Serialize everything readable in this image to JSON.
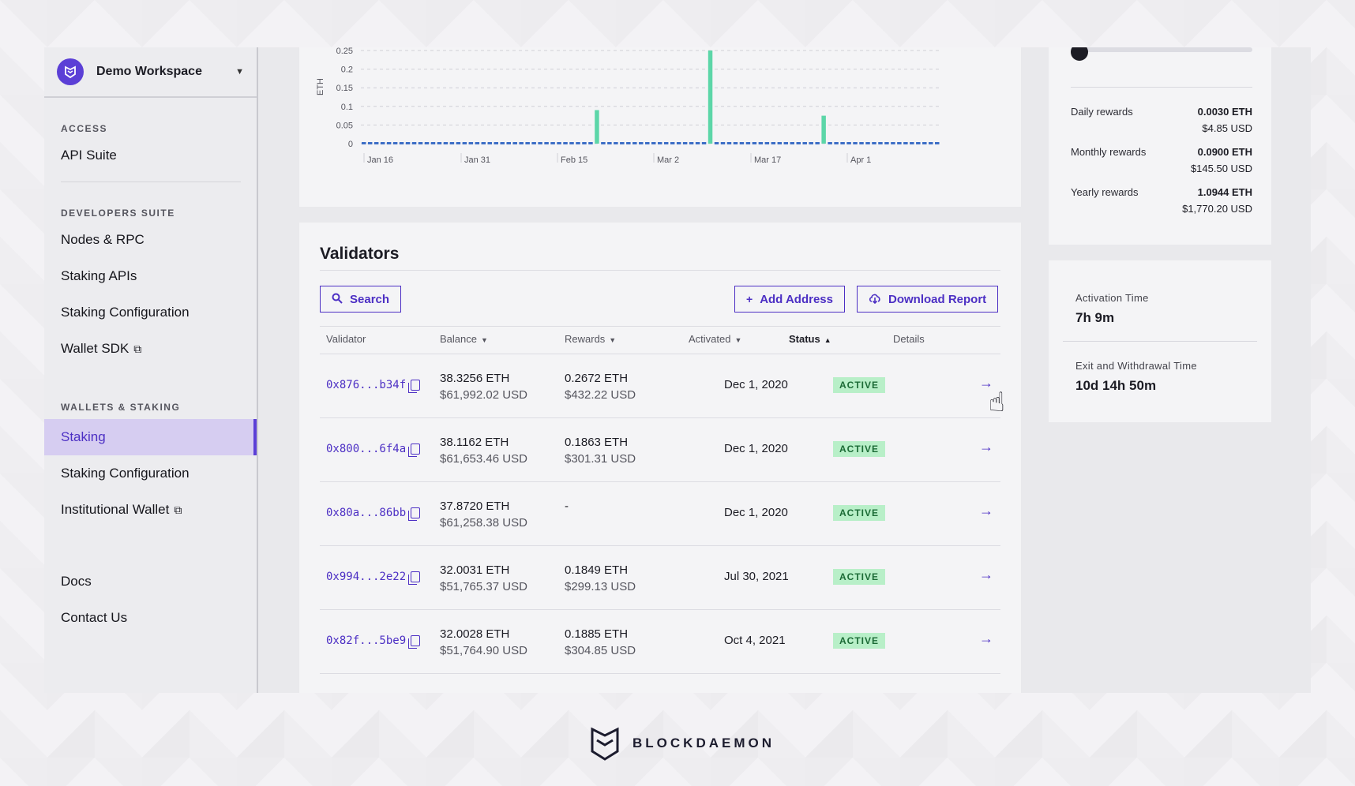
{
  "workspace": {
    "name": "Demo Workspace"
  },
  "sidebar": {
    "sections": [
      {
        "title": "ACCESS",
        "items": [
          {
            "label": "API Suite"
          }
        ]
      },
      {
        "title": "DEVELOPERS SUITE",
        "items": [
          {
            "label": "Nodes & RPC"
          },
          {
            "label": "Staking APIs"
          },
          {
            "label": "Staking Configuration"
          },
          {
            "label": "Wallet SDK",
            "external": true
          }
        ]
      },
      {
        "title": "WALLETS & STAKING",
        "items": [
          {
            "label": "Staking",
            "active": true
          },
          {
            "label": "Staking Configuration"
          },
          {
            "label": "Institutional Wallet",
            "external": true
          }
        ]
      }
    ],
    "bottom": [
      {
        "label": "Docs"
      },
      {
        "label": "Contact Us"
      }
    ]
  },
  "chart_data": {
    "type": "bar",
    "ylabel": "ETH",
    "ylim": [
      0,
      0.25
    ],
    "yticks": [
      "0.25",
      "0.2",
      "0.15",
      "0.1",
      "0.05",
      "0"
    ],
    "xticks": [
      "Jan 16",
      "Jan 31",
      "Feb 15",
      "Mar 2",
      "Mar 17",
      "Apr 1"
    ],
    "series": [
      {
        "values": [
          0.003,
          0.003,
          0.003,
          0.003,
          0.003,
          0.003,
          0.003,
          0.003,
          0.003,
          0.003,
          0.003,
          0.003,
          0.003,
          0.003,
          0.003,
          0.003,
          0.003,
          0.003,
          0.003,
          0.003,
          0.003,
          0.003,
          0.003,
          0.003,
          0.003,
          0.003,
          0.003,
          0.003,
          0.003,
          0.003,
          0.003,
          0.003,
          0.003,
          0.003,
          0.003,
          0.003,
          0.003,
          0.09,
          0.003,
          0.003,
          0.003,
          0.003,
          0.003,
          0.003,
          0.003,
          0.003,
          0.003,
          0.003,
          0.003,
          0.003,
          0.003,
          0.003,
          0.003,
          0.003,
          0.003,
          0.26,
          0.001,
          0.003,
          0.003,
          0.003,
          0.003,
          0.003,
          0.003,
          0.003,
          0.003,
          0.003,
          0.003,
          0.003,
          0.003,
          0.003,
          0.003,
          0.003,
          0.003,
          0.075,
          0.003,
          0.003,
          0.003,
          0.003,
          0.003,
          0.003,
          0.003,
          0.003,
          0.003,
          0.003,
          0.003,
          0.003,
          0.003,
          0.003,
          0.003,
          0.003,
          0.003,
          0.003
        ]
      }
    ],
    "colors": {
      "base": "#3d6ec6",
      "spike": "#5cd6a8"
    }
  },
  "validators": {
    "title": "Validators",
    "search_label": "Search",
    "add_label": "Add Address",
    "download_label": "Download Report",
    "columns": {
      "validator": "Validator",
      "balance": "Balance",
      "rewards": "Rewards",
      "activated": "Activated",
      "status": "Status",
      "details": "Details"
    },
    "rows": [
      {
        "address": "0x876...b34f",
        "balance_eth": "38.3256 ETH",
        "balance_usd": "$61,992.02 USD",
        "rewards_eth": "0.2672 ETH",
        "rewards_usd": "$432.22 USD",
        "activated": "Dec 1, 2020",
        "status": "ACTIVE"
      },
      {
        "address": "0x800...6f4a",
        "balance_eth": "38.1162 ETH",
        "balance_usd": "$61,653.46 USD",
        "rewards_eth": "0.1863 ETH",
        "rewards_usd": "$301.31 USD",
        "activated": "Dec 1, 2020",
        "status": "ACTIVE"
      },
      {
        "address": "0x80a...86bb",
        "balance_eth": "37.8720 ETH",
        "balance_usd": "$61,258.38 USD",
        "rewards_eth": "-",
        "rewards_usd": "",
        "activated": "Dec 1, 2020",
        "status": "ACTIVE"
      },
      {
        "address": "0x994...2e22",
        "balance_eth": "32.0031 ETH",
        "balance_usd": "$51,765.37 USD",
        "rewards_eth": "0.1849 ETH",
        "rewards_usd": "$299.13 USD",
        "activated": "Jul 30, 2021",
        "status": "ACTIVE"
      },
      {
        "address": "0x82f...5be9",
        "balance_eth": "32.0028 ETH",
        "balance_usd": "$51,764.90 USD",
        "rewards_eth": "0.1885 ETH",
        "rewards_usd": "$304.85 USD",
        "activated": "Oct 4, 2021",
        "status": "ACTIVE"
      }
    ]
  },
  "rewards": {
    "daily": {
      "label": "Daily rewards",
      "eth": "0.0030 ETH",
      "usd": "$4.85 USD"
    },
    "monthly": {
      "label": "Monthly rewards",
      "eth": "0.0900 ETH",
      "usd": "$145.50 USD"
    },
    "yearly": {
      "label": "Yearly rewards",
      "eth": "1.0944 ETH",
      "usd": "$1,770.20 USD"
    }
  },
  "times": {
    "activation": {
      "label": "Activation Time",
      "value": "7h 9m"
    },
    "exit": {
      "label": "Exit and Withdrawal Time",
      "value": "10d 14h 50m"
    }
  },
  "brand": {
    "name": "BLOCKDAEMON"
  }
}
